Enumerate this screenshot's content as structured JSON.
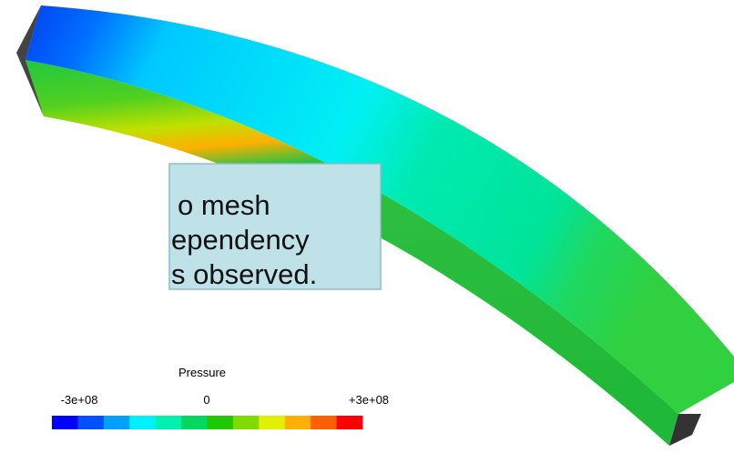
{
  "callout": {
    "lines": [
      "o mesh",
      "ependency",
      "s observed."
    ]
  },
  "legend": {
    "title": "Pressure",
    "tick_labels": [
      "-3e+08",
      "0",
      "+3e+08"
    ],
    "colors": [
      "#0000ff",
      "#0050ff",
      "#00a0ff",
      "#00f0ff",
      "#00f0b0",
      "#00d860",
      "#20c800",
      "#80dc00",
      "#e0f000",
      "#ffb000",
      "#ff6000",
      "#ff0000"
    ]
  }
}
